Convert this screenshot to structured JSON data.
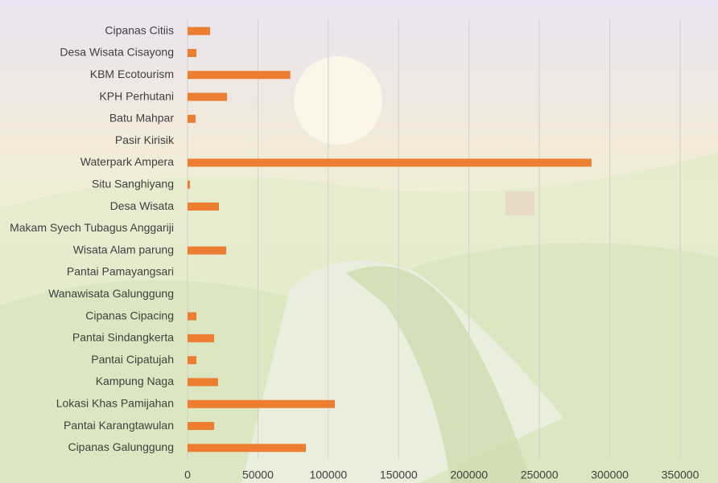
{
  "chart_data": {
    "type": "bar",
    "orientation": "horizontal",
    "categories": [
      "Cipanas Citiis",
      "Desa Wisata Cisayong",
      "KBM Ecotourism",
      "KPH Perhutani",
      "Batu Mahpar",
      "Pasir Kirisik",
      "Waterpark Ampera",
      "Situ Sanghiyang",
      "Desa Wisata",
      "Makam Syech Tubagus Anggariji",
      "Wisata Alam parung",
      "Pantai Pamayangsari",
      "Wanawisata Galunggung",
      "Cipanas Cipacing",
      "Pantai Sindangkerta",
      "Pantai Cipatujah",
      "Kampung Naga",
      "Lokasi Khas Pamijahan",
      "Pantai Karangtawulan",
      "Cipanas Galunggung"
    ],
    "values": [
      16000,
      6300,
      73000,
      28000,
      5700,
      0,
      287000,
      1700,
      22300,
      0,
      27500,
      0,
      0,
      6300,
      18900,
      6300,
      21700,
      104700,
      18900,
      84100
    ],
    "color": "#ed7d31",
    "xlim": [
      0,
      350000
    ],
    "xticks": [
      0,
      50000,
      100000,
      150000,
      200000,
      250000,
      300000,
      350000
    ],
    "grid": true
  }
}
